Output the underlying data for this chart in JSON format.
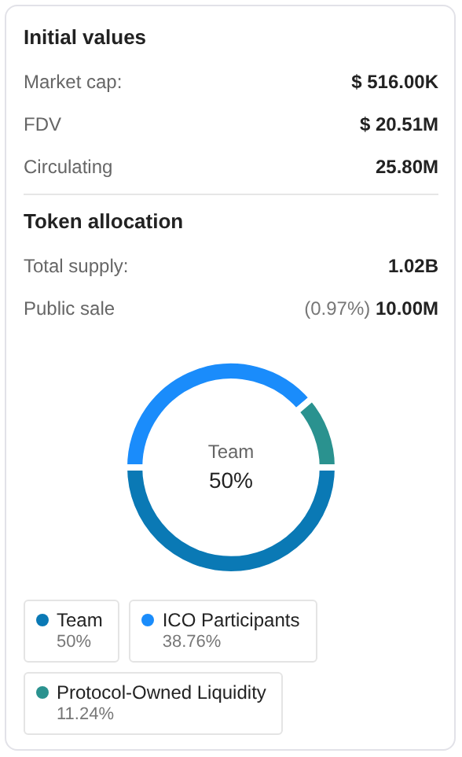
{
  "chart_data": [
    {
      "type": "other",
      "title": "Initial values",
      "annotations": [
        "Market cap:",
        "$ 516.00K",
        "FDV",
        "$ 20.51M",
        "Circulating",
        "25.80M"
      ]
    },
    {
      "type": "donut",
      "title": "Token allocation",
      "annotations": [
        "Total supply:",
        "1.02B",
        "Public sale",
        "(0.97%) 10.00M"
      ],
      "categories": [
        "Team",
        "ICO Participants",
        "Protocol-Owned Liquidity"
      ],
      "values": [
        50,
        38.76,
        11.24
      ],
      "colors": [
        "#0a79b5",
        "#1a8cfb",
        "#2a928f"
      ],
      "legend": "bottom",
      "value_labels": [
        "50%",
        "38.76%",
        "11.24%"
      ]
    }
  ]
}
